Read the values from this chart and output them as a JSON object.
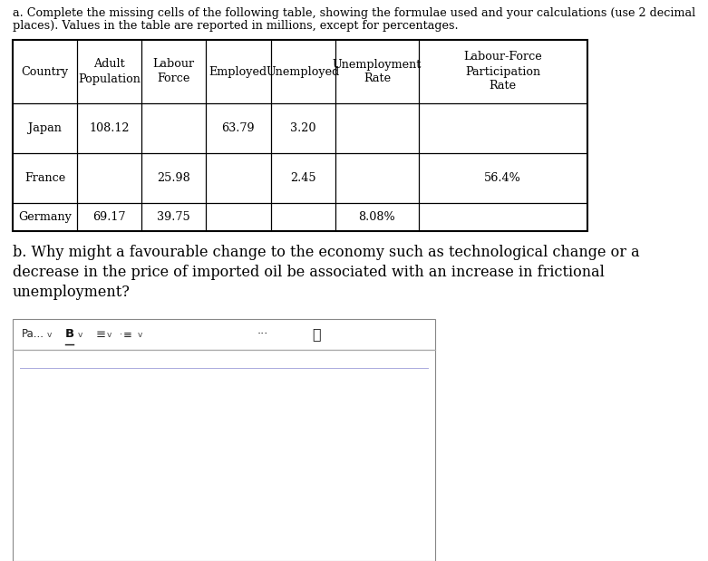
{
  "title_line1": "a. Complete the missing cells of the following table, showing the formulae used and your calculations (use 2 decimal",
  "title_line2": "places). Values in the table are reported in millions, except for percentages.",
  "col_headers": [
    "Country",
    "Adult\nPopulation",
    "Labour\nForce",
    "Employed",
    "Unemployed",
    "Unemployment\nRate",
    "Labour-Force\nParticipation\nRate"
  ],
  "rows": [
    [
      "Japan",
      "108.12",
      "",
      "63.79",
      "3.20",
      "",
      ""
    ],
    [
      "France",
      "",
      "25.98",
      "",
      "2.45",
      "",
      "56.4%"
    ],
    [
      "Germany",
      "69.17",
      "39.75",
      "",
      "",
      "8.08%",
      ""
    ]
  ],
  "section_b_lines": [
    "b. Why might a favourable change to the economy such as technological change or a",
    "decrease in the price of imported oil be associated with an increase in frictional",
    "unemployment?"
  ],
  "bg_color": "#ffffff",
  "border_color": "#000000",
  "text_color": "#000000",
  "title_fontsize": 9.2,
  "table_fontsize": 9.2,
  "section_b_fontsize": 11.5,
  "toolbar_fontsize": 8.5
}
